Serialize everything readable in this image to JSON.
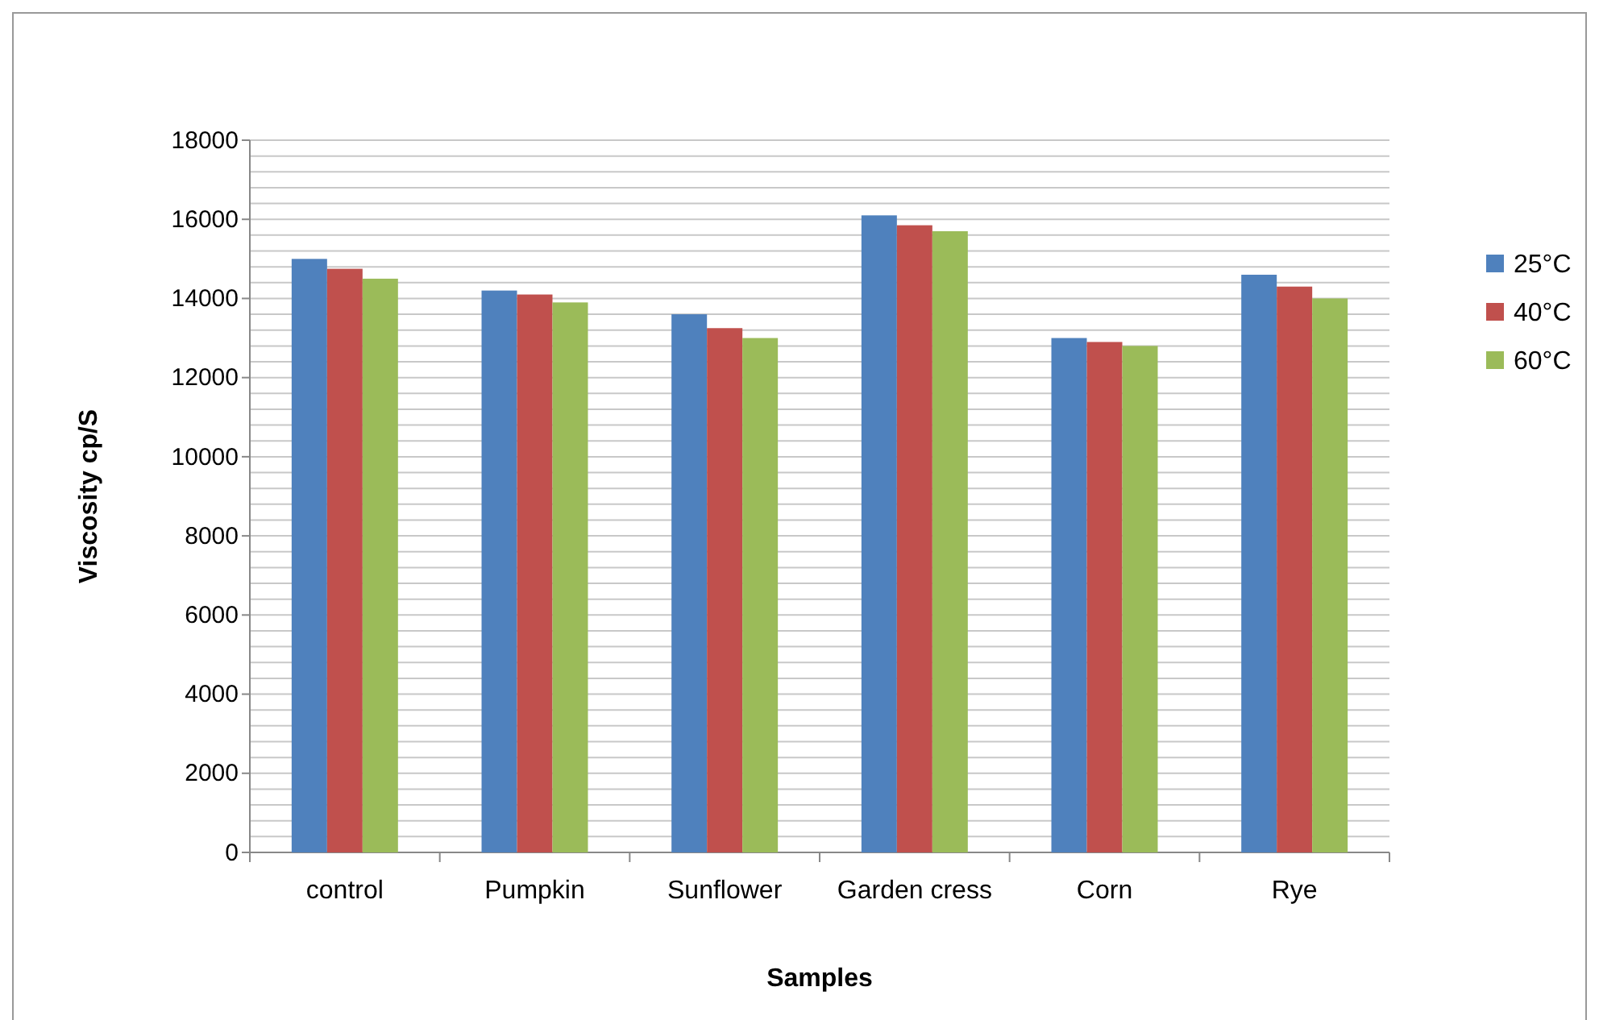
{
  "chart_data": {
    "type": "bar",
    "xlabel": "Samples",
    "ylabel": "Viscosity cp/S",
    "categories": [
      "control",
      "Pumpkin",
      "Sunflower",
      "Garden cress",
      "Corn",
      "Rye"
    ],
    "series": [
      {
        "name": "25°C",
        "color": "#4f81bd",
        "values": [
          15000,
          14200,
          13600,
          16100,
          13000,
          14600
        ]
      },
      {
        "name": "40°C",
        "color": "#c0504d",
        "values": [
          14750,
          14100,
          13250,
          15850,
          12900,
          14300
        ]
      },
      {
        "name": "60°C",
        "color": "#9bbb59",
        "values": [
          14500,
          13900,
          13000,
          15700,
          12800,
          14000
        ]
      }
    ],
    "ylim": [
      0,
      18000
    ],
    "yticks": [
      0,
      {
        "value": 400,
        "label": null
      },
      {
        "value": 800,
        "label": null
      },
      {
        "value": 1200,
        "label": null
      },
      {
        "value": 1600,
        "label": null
      },
      2000,
      {
        "value": 2400,
        "label": null
      },
      {
        "value": 2800,
        "label": null
      },
      {
        "value": 3200,
        "label": null
      },
      {
        "value": 3600,
        "label": null
      },
      4000,
      {
        "value": 4400,
        "label": null
      },
      {
        "value": 4800,
        "label": null
      },
      {
        "value": 5200,
        "label": null
      },
      {
        "value": 5600,
        "label": null
      },
      6000,
      {
        "value": 6400,
        "label": null
      },
      {
        "value": 6800,
        "label": null
      },
      {
        "value": 7200,
        "label": null
      },
      {
        "value": 7600,
        "label": null
      },
      8000,
      {
        "value": 8400,
        "label": null
      },
      {
        "value": 8800,
        "label": null
      },
      {
        "value": 9200,
        "label": null
      },
      {
        "value": 9600,
        "label": null
      },
      10000,
      {
        "value": 10400,
        "label": null
      },
      {
        "value": 10800,
        "label": null
      },
      {
        "value": 11200,
        "label": null
      },
      {
        "value": 11600,
        "label": null
      },
      12000,
      {
        "value": 12400,
        "label": null
      },
      {
        "value": 12800,
        "label": null
      },
      {
        "value": 13200,
        "label": null
      },
      {
        "value": 13600,
        "label": null
      },
      14000,
      {
        "value": 14400,
        "label": null
      },
      {
        "value": 14800,
        "label": null
      },
      {
        "value": 15200,
        "label": null
      },
      {
        "value": 15600,
        "label": null
      },
      16000,
      {
        "value": 16400,
        "label": null
      },
      {
        "value": 16800,
        "label": null
      },
      {
        "value": 17200,
        "label": null
      },
      {
        "value": 17600,
        "label": null
      },
      18000
    ],
    "grid": "y",
    "legend": "right"
  }
}
